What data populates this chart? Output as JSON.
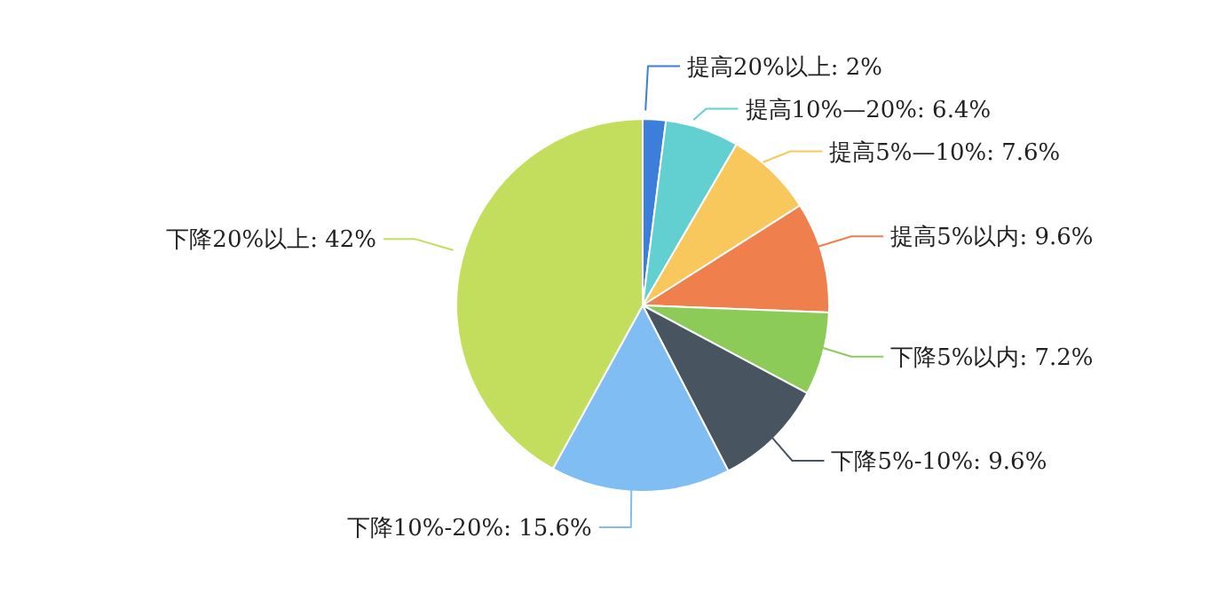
{
  "chart_data": {
    "type": "pie",
    "categories": [
      "提高20%以上",
      "提高10%—20%",
      "提高5%—10%",
      "提高5%以内",
      "下降5%以内",
      "下降5%-10%",
      "下降10%-20%",
      "下降20%以上"
    ],
    "values": [
      2,
      6.4,
      7.6,
      9.6,
      7.2,
      9.6,
      15.6,
      42
    ],
    "value_labels": [
      "2%",
      "6.4%",
      "7.6%",
      "9.6%",
      "7.2%",
      "9.6%",
      "15.6%",
      "42%"
    ],
    "colors": [
      "#3b7fdb",
      "#62cfd0",
      "#f8c85c",
      "#ef7f4d",
      "#8dcb59",
      "#48545f",
      "#80bdf2",
      "#c2de5c"
    ]
  }
}
